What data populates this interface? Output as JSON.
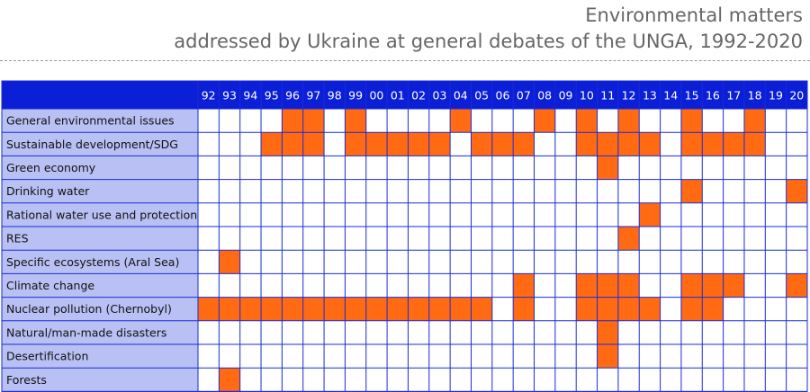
{
  "title_line1": "Environmental matters",
  "title_line2": "addressed by Ukraine at general debates of the UNGA, 1992-2020",
  "colors": {
    "header_bg": "#0a1fd6",
    "label_bg": "#b8c0f4",
    "grid_line": "#1a2bd8",
    "mark": "#ff6a13",
    "title_text": "#666666"
  },
  "chart_data": {
    "type": "heatmap",
    "columns": [
      "92",
      "93",
      "94",
      "95",
      "96",
      "97",
      "98",
      "99",
      "00",
      "01",
      "02",
      "03",
      "04",
      "05",
      "06",
      "07",
      "08",
      "09",
      "10",
      "11",
      "12",
      "13",
      "14",
      "15",
      "16",
      "17",
      "18",
      "19",
      "20"
    ],
    "rows": [
      {
        "label": "General environmental issues",
        "years": [
          "96",
          "97",
          "99",
          "04",
          "08",
          "10",
          "12",
          "15",
          "18"
        ]
      },
      {
        "label": "Sustainable development/SDG",
        "years": [
          "95",
          "96",
          "97",
          "99",
          "00",
          "01",
          "02",
          "03",
          "05",
          "06",
          "07",
          "10",
          "11",
          "12",
          "13",
          "15",
          "16",
          "17",
          "18"
        ]
      },
      {
        "label": "Green economy",
        "years": [
          "11"
        ]
      },
      {
        "label": "Drinking water",
        "years": [
          "15",
          "20"
        ]
      },
      {
        "label": "Rational water use and protection",
        "years": [
          "13"
        ]
      },
      {
        "label": "RES",
        "years": [
          "12"
        ]
      },
      {
        "label": "Specific ecosystems (Aral Sea)",
        "years": [
          "93"
        ]
      },
      {
        "label": "Climate change",
        "years": [
          "07",
          "10",
          "11",
          "12",
          "15",
          "16",
          "17",
          "20"
        ]
      },
      {
        "label": "Nuclear pollution (Chernobyl)",
        "years": [
          "92",
          "93",
          "94",
          "95",
          "96",
          "97",
          "98",
          "99",
          "00",
          "01",
          "02",
          "03",
          "04",
          "05",
          "07",
          "10",
          "11",
          "12",
          "13",
          "15",
          "16"
        ]
      },
      {
        "label": "Natural/man-made disasters",
        "years": [
          "11"
        ]
      },
      {
        "label": "Desertification",
        "years": [
          "11"
        ]
      },
      {
        "label": "Forests",
        "years": [
          "93"
        ]
      }
    ]
  }
}
